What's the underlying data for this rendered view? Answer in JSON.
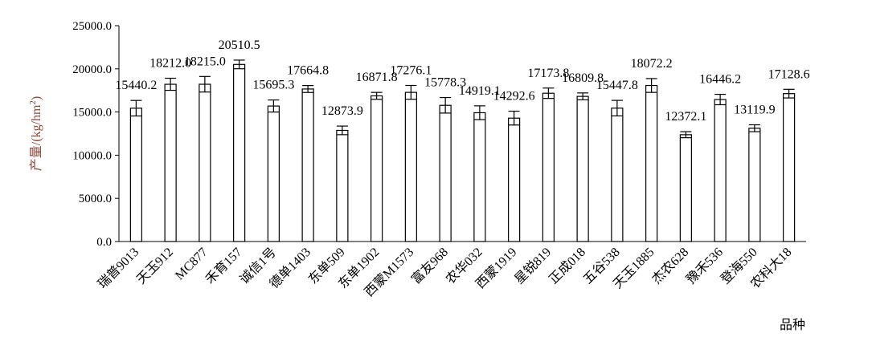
{
  "chart_data": {
    "type": "bar",
    "title": "",
    "xlabel": "品种",
    "ylabel_main": "产量/(kg/hm",
    "ylabel_sup": "2",
    "ylabel_tail": ")",
    "ylim": [
      0,
      25000
    ],
    "yticks": [
      "0.0",
      "5000.0",
      "10000.0",
      "15000.0",
      "20000.0",
      "25000.0"
    ],
    "grid": false,
    "categories": [
      "瑞普9013",
      "天玉912",
      "MC877",
      "禾育157",
      "诚信1号",
      "德单1403",
      "东单509",
      "东单1902",
      "西蒙M1573",
      "富友968",
      "农华032",
      "西蒙1919",
      "星锐819",
      "正成018",
      "五谷538",
      "天玉1885",
      "杰农628",
      "豫禾536",
      "登海550",
      "农科大18"
    ],
    "values": [
      15440.2,
      18212.0,
      18215.0,
      20510.5,
      15695.3,
      17664.8,
      12873.9,
      16871.8,
      17276.1,
      15778.3,
      14919.1,
      14292.6,
      17173.8,
      16809.8,
      15447.8,
      18072.2,
      12372.1,
      16446.2,
      13119.9,
      17128.6
    ],
    "value_labels": [
      "15440.2",
      "18212.0",
      "18215.0",
      "20510.5",
      "15695.3",
      "17664.8",
      "12873.9",
      "16871.8",
      "17276.1",
      "15778.3",
      "14919.1",
      "14292.6",
      "17173.8",
      "16809.8",
      "15447.8",
      "18072.2",
      "12372.1",
      "16446.2",
      "13119.9",
      "17128.6"
    ],
    "errors": [
      900,
      700,
      900,
      500,
      700,
      400,
      500,
      400,
      800,
      900,
      800,
      800,
      600,
      400,
      900,
      800,
      350,
      600,
      400,
      500
    ],
    "bar_fill": "#ffffff",
    "bar_stroke": "#000000"
  }
}
